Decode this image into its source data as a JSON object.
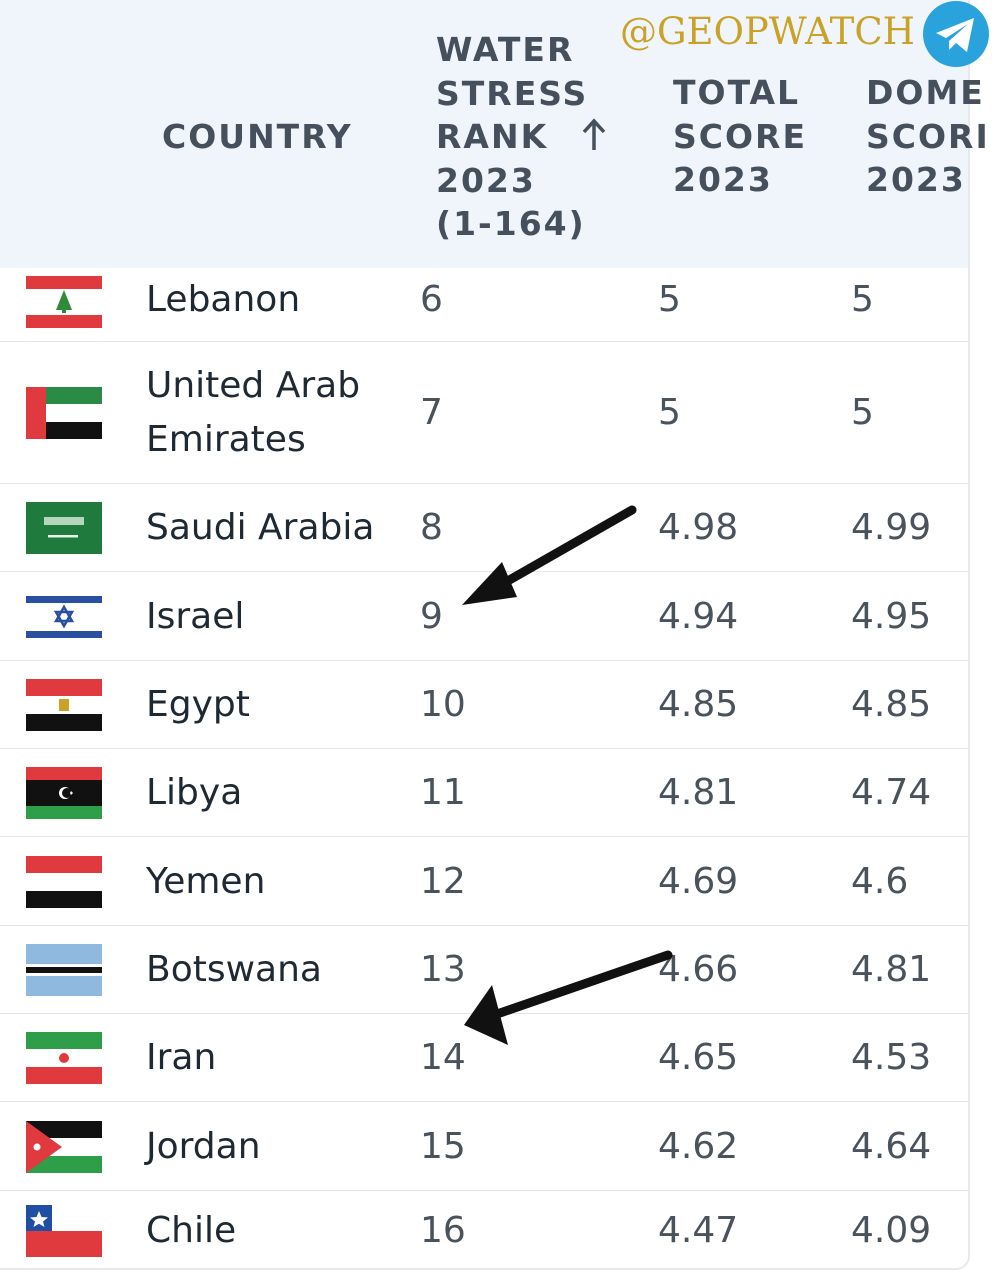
{
  "watermark": "@GEOPWATCH",
  "header": {
    "country": "COUNTRY",
    "rank": "WATER\nSTRESS\nRANK\n2023\n(1-164)",
    "total": "TOTAL\nSCORE\n2023",
    "dome": "DOME\nSCORI\n2023"
  },
  "rows": [
    {
      "name": "Lebanon",
      "rank": "6",
      "total": "5",
      "dome": "5",
      "flag": "lebanon"
    },
    {
      "name": "United Arab\nEmirates",
      "rank": "7",
      "total": "5",
      "dome": "5",
      "flag": "uae"
    },
    {
      "name": "Saudi Arabia",
      "rank": "8",
      "total": "4.98",
      "dome": "4.99",
      "flag": "saudi"
    },
    {
      "name": "Israel",
      "rank": "9",
      "total": "4.94",
      "dome": "4.95",
      "flag": "israel"
    },
    {
      "name": "Egypt",
      "rank": "10",
      "total": "4.85",
      "dome": "4.85",
      "flag": "egypt"
    },
    {
      "name": "Libya",
      "rank": "11",
      "total": "4.81",
      "dome": "4.74",
      "flag": "libya"
    },
    {
      "name": "Yemen",
      "rank": "12",
      "total": "4.69",
      "dome": "4.6",
      "flag": "yemen"
    },
    {
      "name": "Botswana",
      "rank": "13",
      "total": "4.66",
      "dome": "4.81",
      "flag": "botswana"
    },
    {
      "name": "Iran",
      "rank": "14",
      "total": "4.65",
      "dome": "4.53",
      "flag": "iran"
    },
    {
      "name": "Jordan",
      "rank": "15",
      "total": "4.62",
      "dome": "4.64",
      "flag": "jordan"
    },
    {
      "name": "Chile",
      "rank": "16",
      "total": "4.47",
      "dome": "4.09",
      "flag": "chile"
    }
  ],
  "colors": {
    "header_bg": "#eff5fb",
    "watermark": "#c9a227",
    "telegram": "#2aa3dd"
  }
}
